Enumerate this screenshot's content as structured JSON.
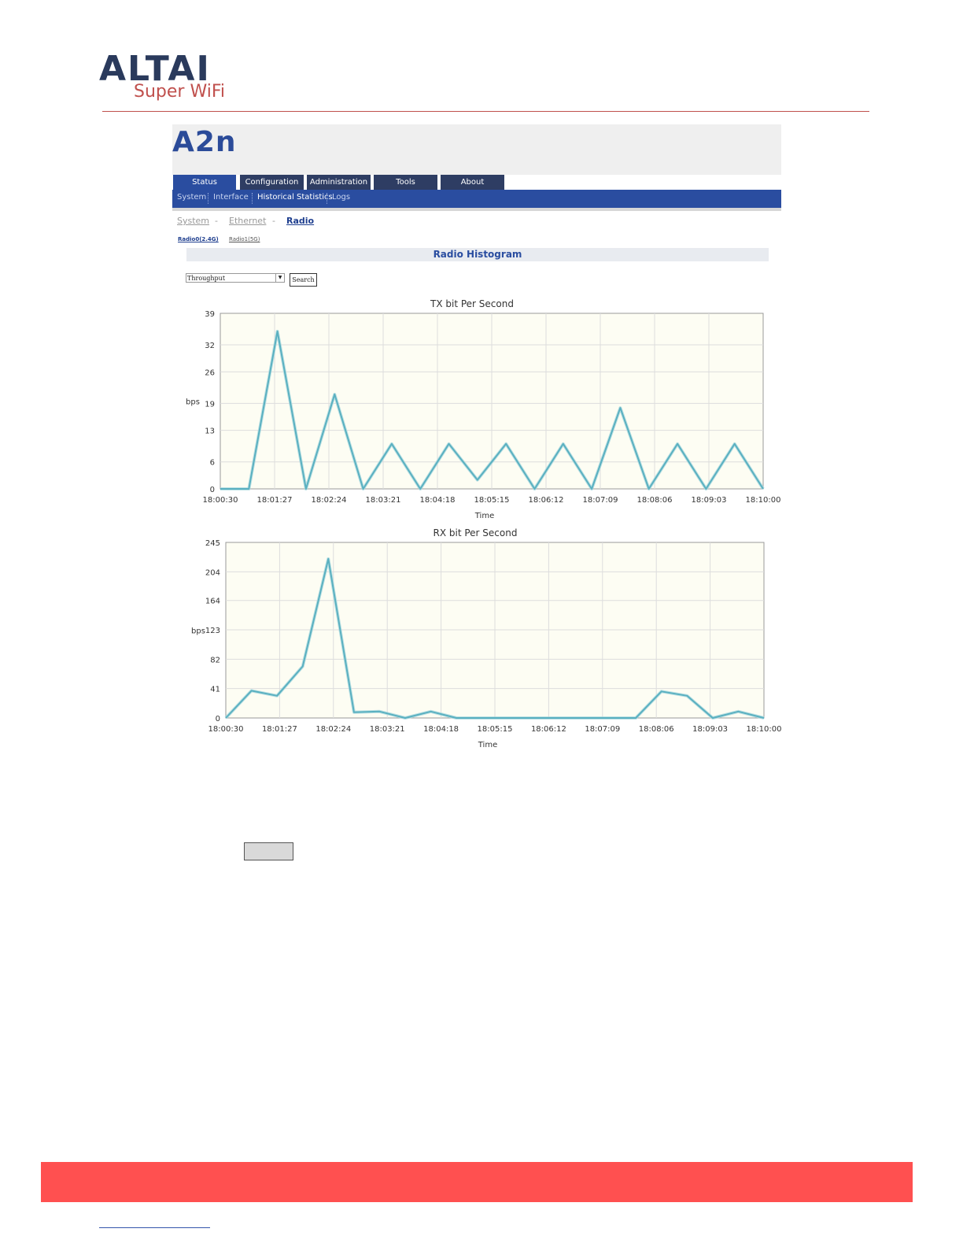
{
  "logo": {
    "wordmark": "ALTAI",
    "tagline": "Super WiFi"
  },
  "app": {
    "title": "A2n",
    "main_tabs": [
      {
        "label": "Status"
      },
      {
        "label": "Configuration"
      },
      {
        "label": "Administration"
      },
      {
        "label": "Tools"
      },
      {
        "label": "About"
      }
    ],
    "sub_nav": [
      {
        "label": "System"
      },
      {
        "label": "Interface"
      },
      {
        "label": "Historical Statistics"
      },
      {
        "label": "Logs"
      }
    ],
    "breadcrumb": {
      "system": "System",
      "ethernet": "Ethernet",
      "radio": "Radio",
      "sep": "-"
    },
    "radio_links": {
      "radio0": "Radio0(2.4G)",
      "radio1": "Radio1(5G)"
    },
    "section_title": "Radio Histogram",
    "metric_select": {
      "value": "Throughput"
    },
    "search_label": "Search"
  },
  "chart_data": [
    {
      "type": "line",
      "title": "TX bit Per Second",
      "xlabel": "Time",
      "ylabel": "bps",
      "ylim": [
        0,
        39
      ],
      "y_ticks": [
        0,
        6,
        13,
        19,
        26,
        32,
        39
      ],
      "x_ticks": [
        "18:00:30",
        "18:01:27",
        "18:02:24",
        "18:03:21",
        "18:04:18",
        "18:05:15",
        "18:06:12",
        "18:07:09",
        "18:08:06",
        "18:09:03",
        "18:10:00"
      ],
      "grid": true,
      "line_color": "#5ab0c0",
      "series": [
        {
          "values": [
            0,
            0,
            35,
            0,
            21,
            0,
            10,
            0,
            10,
            2,
            10,
            0,
            10,
            0,
            18,
            0,
            10,
            0,
            10,
            0
          ]
        }
      ]
    },
    {
      "type": "line",
      "title": "RX bit Per Second",
      "xlabel": "Time",
      "ylabel": "bps",
      "ylim": [
        0,
        245
      ],
      "y_ticks": [
        0,
        41,
        82,
        123,
        164,
        204,
        245
      ],
      "x_ticks": [
        "18:00:30",
        "18:01:27",
        "18:02:24",
        "18:03:21",
        "18:04:18",
        "18:05:15",
        "18:06:12",
        "18:07:09",
        "18:08:06",
        "18:09:03",
        "18:10:00"
      ],
      "grid": true,
      "line_color": "#5ab0c0",
      "series": [
        {
          "values": [
            0,
            38,
            31,
            72,
            222,
            8,
            9,
            0,
            9,
            0,
            0,
            0,
            0,
            0,
            0,
            0,
            0,
            37,
            31,
            0,
            9,
            0
          ]
        }
      ]
    }
  ]
}
